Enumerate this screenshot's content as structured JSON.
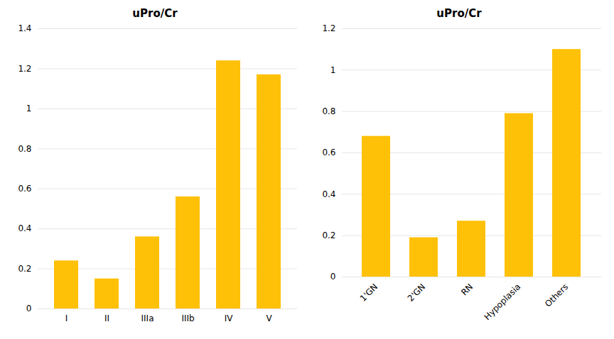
{
  "chart_data": [
    {
      "type": "bar",
      "title": "uPro/Cr",
      "categories": [
        "I",
        "II",
        "IIIa",
        "IIIb",
        "IV",
        "V"
      ],
      "values": [
        0.24,
        0.15,
        0.36,
        0.56,
        1.24,
        1.17
      ],
      "color": "#FFC107",
      "ylim": [
        0,
        1.4
      ],
      "yticks": [
        0,
        0.2,
        0.4,
        0.6,
        0.8,
        1,
        1.2,
        1.4
      ],
      "grid": true
    },
    {
      "type": "bar",
      "title": "uPro/Cr",
      "categories": [
        "1'GN",
        "2'GN",
        "RN",
        "Hypoplasia",
        "Others"
      ],
      "values": [
        0.68,
        0.19,
        0.27,
        0.79,
        1.1
      ],
      "color": "#FFC107",
      "ylim": [
        0,
        1.2
      ],
      "yticks": [
        0,
        0.2,
        0.4,
        0.6,
        0.8,
        1,
        1.2
      ],
      "grid": true
    }
  ]
}
